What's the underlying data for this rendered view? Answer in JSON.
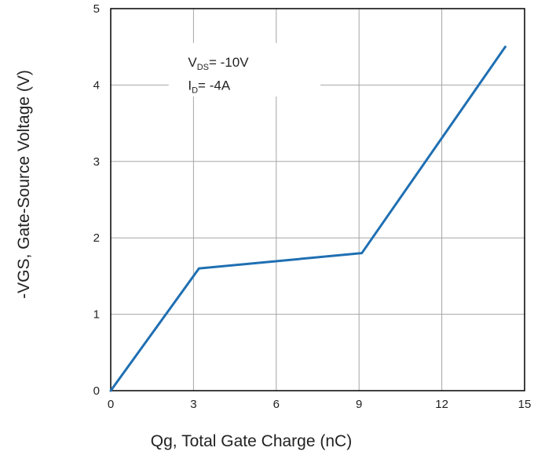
{
  "chart_data": {
    "type": "line",
    "title": "",
    "xlabel": "Qg, Total Gate Charge (nC)",
    "ylabel": "-VGS, Gate-Source Voltage (V)",
    "xlim": [
      0,
      15
    ],
    "ylim": [
      0,
      5
    ],
    "x_ticks": [
      "0",
      "3",
      "6",
      "9",
      "12",
      "15"
    ],
    "y_ticks": [
      "0",
      "1",
      "2",
      "3",
      "4",
      "5"
    ],
    "grid": true,
    "series": [
      {
        "color": "#1f6fb2",
        "x": [
          0,
          3.2,
          9.1,
          14.3
        ],
        "y": [
          0,
          1.6,
          1.8,
          4.5
        ]
      }
    ],
    "annotations": [
      {
        "main": "V",
        "sub": "DS",
        "rest": "= -10V"
      },
      {
        "main": "I",
        "sub": "D",
        "rest": "= -4A"
      }
    ]
  }
}
